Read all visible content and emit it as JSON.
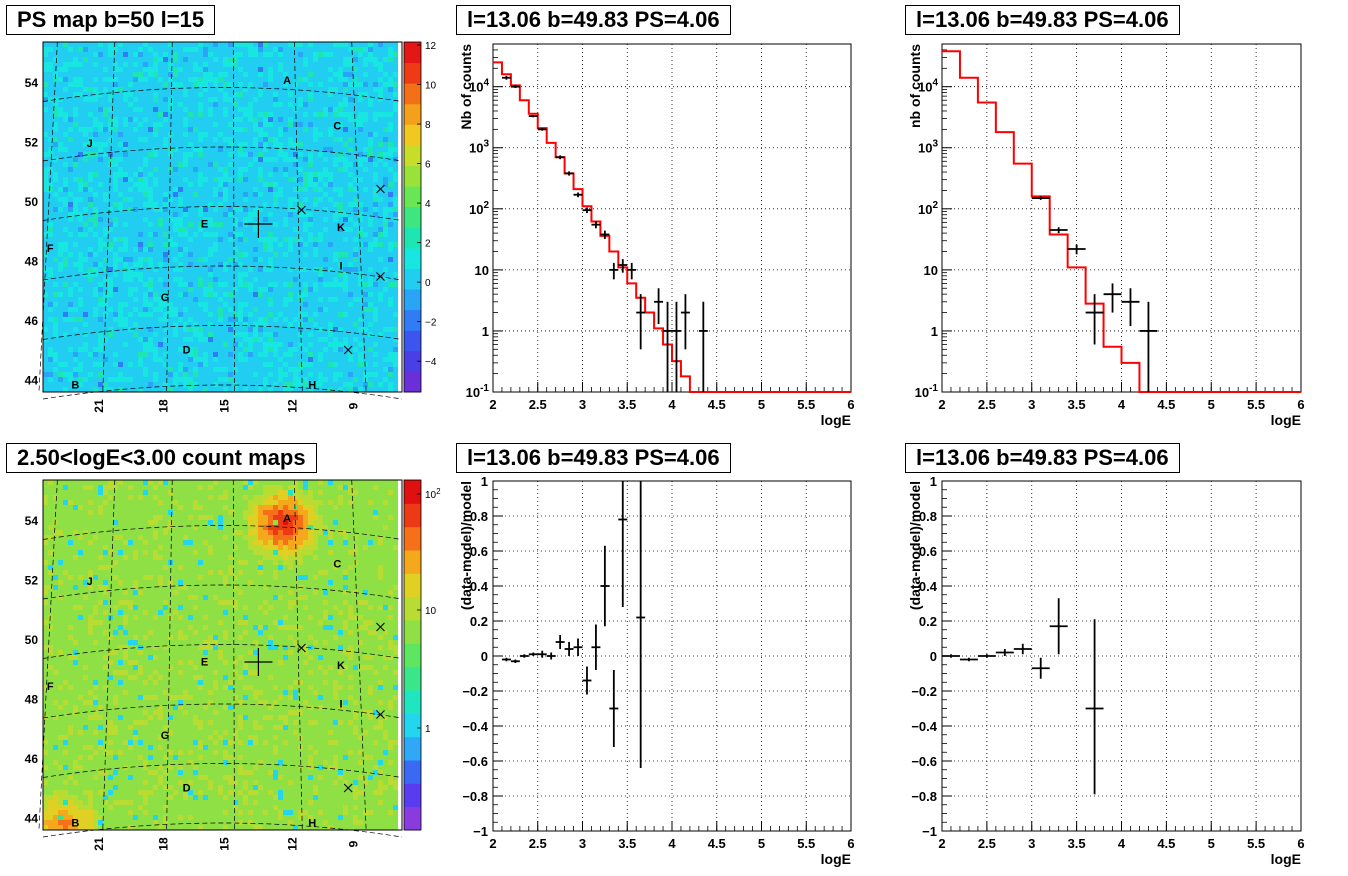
{
  "titles": {
    "ps_map": "PS map b=50 l=15",
    "count_map": "2.50<logE<3.00 count maps",
    "spec_tl": "l=13.06 b=49.83 PS=4.06",
    "spec_tr": "l=13.06 b=49.83 PS=4.06",
    "res_bl": "l=13.06 b=49.83 PS=4.06",
    "res_br": "l=13.06 b=49.83 PS=4.06"
  },
  "colors": {
    "model": "#ff0000",
    "data": "#000000"
  },
  "chart_data": [
    {
      "id": "ps_map",
      "type": "heatmap",
      "title": "PS map b=50 l=15",
      "ylabel_ticks": [
        "54",
        "52",
        "50",
        "48",
        "46",
        "44"
      ],
      "xlabel_ticks": [
        "21",
        "18",
        "15",
        "12",
        "9"
      ],
      "colorbar_ticks": [
        "12",
        "10",
        "8",
        "6",
        "4",
        "2",
        "0",
        "-2",
        "-4"
      ],
      "labels": [
        "A",
        "C",
        "J",
        "E",
        "K",
        "F",
        "I",
        "G",
        "D",
        "B",
        "H"
      ]
    },
    {
      "id": "spec_left",
      "type": "line",
      "title": "l=13.06 b=49.83 PS=4.06",
      "xlabel": "logE",
      "ylabel": "Nb of counts",
      "xlim": [
        2,
        6
      ],
      "ylim": [
        0.1,
        50000
      ],
      "yscale": "log",
      "xticks": [
        "2",
        "2.5",
        "3",
        "3.5",
        "4",
        "4.5",
        "5",
        "5.5",
        "6"
      ],
      "yticks": [
        "10^{-1}",
        "1",
        "10",
        "10^{2}",
        "10^{3}",
        "10^{4}"
      ],
      "model": {
        "x": [
          2,
          2.1,
          2.2,
          2.3,
          2.4,
          2.5,
          2.6,
          2.7,
          2.8,
          2.9,
          3.0,
          3.1,
          3.2,
          3.3,
          3.4,
          3.5,
          3.6,
          3.7,
          3.8,
          3.9,
          4.0,
          4.1,
          4.2,
          6.0
        ],
        "y": [
          25000,
          16000,
          10500,
          6000,
          3600,
          2100,
          1200,
          700,
          380,
          210,
          110,
          62,
          36,
          20,
          11,
          6,
          3.5,
          2,
          1.1,
          0.6,
          0.32,
          0.18,
          0.1,
          0.1
        ]
      },
      "data": {
        "x": [
          2.15,
          2.25,
          2.45,
          2.55,
          2.75,
          2.85,
          2.95,
          3.05,
          3.15,
          3.25,
          3.35,
          3.45,
          3.55,
          3.65,
          3.85,
          3.95,
          4.05,
          4.15,
          4.35
        ],
        "y": [
          14000,
          10000,
          3300,
          2000,
          700,
          380,
          170,
          95,
          55,
          38,
          10,
          12,
          10,
          2,
          3,
          1,
          1,
          2,
          1
        ],
        "lo": [
          13000,
          9500,
          3150,
          1900,
          650,
          350,
          155,
          85,
          48,
          32,
          7,
          9,
          7,
          0.5,
          1.3,
          0.1,
          0.1,
          0.5,
          0.1
        ],
        "hi": [
          15000,
          10500,
          3450,
          2100,
          750,
          410,
          185,
          105,
          62,
          44,
          13,
          15,
          13,
          4,
          5,
          3,
          3,
          4,
          3
        ]
      }
    },
    {
      "id": "spec_right",
      "type": "line",
      "title": "l=13.06 b=49.83 PS=4.06",
      "xlabel": "logE",
      "ylabel": "nb of counts",
      "xlim": [
        2,
        6
      ],
      "ylim": [
        0.1,
        50000
      ],
      "yscale": "log",
      "xticks": [
        "2",
        "2.5",
        "3",
        "3.5",
        "4",
        "4.5",
        "5",
        "5.5",
        "6"
      ],
      "yticks": [
        "10^{-1}",
        "1",
        "10",
        "10^{2}",
        "10^{3}",
        "10^{4}"
      ],
      "model": {
        "x": [
          2,
          2.2,
          2.4,
          2.6,
          2.8,
          3.0,
          3.2,
          3.4,
          3.6,
          3.8,
          4.0,
          4.2,
          6.0
        ],
        "y": [
          38000,
          14000,
          5500,
          1800,
          550,
          160,
          38,
          11,
          2.8,
          0.55,
          0.3,
          0.1,
          0.1
        ]
      },
      "data": {
        "x": [
          3.1,
          3.3,
          3.5,
          3.7,
          3.9,
          4.1,
          4.3
        ],
        "y": [
          150,
          45,
          22,
          2,
          4,
          3,
          1
        ],
        "lo": [
          140,
          40,
          18,
          0.6,
          2,
          1.2,
          0.1
        ],
        "hi": [
          160,
          50,
          26,
          4,
          6,
          5,
          3
        ]
      }
    },
    {
      "id": "count_map",
      "type": "heatmap",
      "title": "2.50<logE<3.00 count maps",
      "ylabel_ticks": [
        "54",
        "52",
        "50",
        "48",
        "46",
        "44"
      ],
      "xlabel_ticks": [
        "21",
        "18",
        "15",
        "12",
        "9"
      ],
      "colorbar_ticks": [
        "10^{2}",
        "10",
        "1"
      ],
      "labels": [
        "A",
        "C",
        "J",
        "E",
        "K",
        "F",
        "I",
        "G",
        "D",
        "B",
        "H"
      ]
    },
    {
      "id": "res_left",
      "type": "scatter",
      "title": "l=13.06 b=49.83 PS=4.06",
      "xlabel": "logE",
      "ylabel": "(data-model)/model",
      "xlim": [
        2,
        6
      ],
      "ylim": [
        -1,
        1
      ],
      "xticks": [
        "2",
        "2.5",
        "3",
        "3.5",
        "4",
        "4.5",
        "5",
        "5.5",
        "6"
      ],
      "yticks": [
        "-1",
        "-0.8",
        "-0.6",
        "-0.4",
        "-0.2",
        "0",
        "0.2",
        "0.4",
        "0.6",
        "0.8",
        "1"
      ],
      "data": {
        "x": [
          2.15,
          2.25,
          2.35,
          2.45,
          2.55,
          2.65,
          2.75,
          2.85,
          2.95,
          3.05,
          3.15,
          3.25,
          3.35,
          3.45,
          3.65
        ],
        "y": [
          -0.02,
          -0.03,
          0.0,
          0.01,
          0.01,
          0.0,
          0.08,
          0.04,
          0.05,
          -0.14,
          0.05,
          0.4,
          -0.3,
          0.78,
          0.22
        ],
        "lo": [
          -0.03,
          -0.04,
          -0.01,
          0.0,
          -0.01,
          -0.02,
          0.04,
          0.0,
          0.0,
          -0.22,
          -0.08,
          0.17,
          -0.52,
          0.28,
          -0.64
        ],
        "hi": [
          -0.01,
          -0.02,
          0.01,
          0.02,
          0.03,
          0.02,
          0.12,
          0.08,
          0.1,
          -0.06,
          0.18,
          0.63,
          -0.08,
          1.0,
          1.0
        ]
      }
    },
    {
      "id": "res_right",
      "type": "scatter",
      "title": "l=13.06 b=49.83 PS=4.06",
      "xlabel": "logE",
      "ylabel": "(data-model)/model",
      "xlim": [
        2,
        6
      ],
      "ylim": [
        -1,
        1
      ],
      "xticks": [
        "2",
        "2.5",
        "3",
        "3.5",
        "4",
        "4.5",
        "5",
        "5.5",
        "6"
      ],
      "yticks": [
        "-1",
        "-0.8",
        "-0.6",
        "-0.4",
        "-0.2",
        "0",
        "0.2",
        "0.4",
        "0.6",
        "0.8",
        "1"
      ],
      "data": {
        "x": [
          2.1,
          2.3,
          2.5,
          2.7,
          2.9,
          3.1,
          3.3,
          3.7
        ],
        "y": [
          0.0,
          -0.02,
          0.0,
          0.02,
          0.04,
          -0.07,
          0.17,
          -0.3
        ],
        "lo": [
          -0.01,
          -0.03,
          -0.01,
          0.0,
          0.01,
          -0.13,
          0.01,
          -0.79
        ],
        "hi": [
          0.01,
          -0.01,
          0.01,
          0.04,
          0.07,
          -0.01,
          0.33,
          0.21
        ]
      }
    }
  ]
}
